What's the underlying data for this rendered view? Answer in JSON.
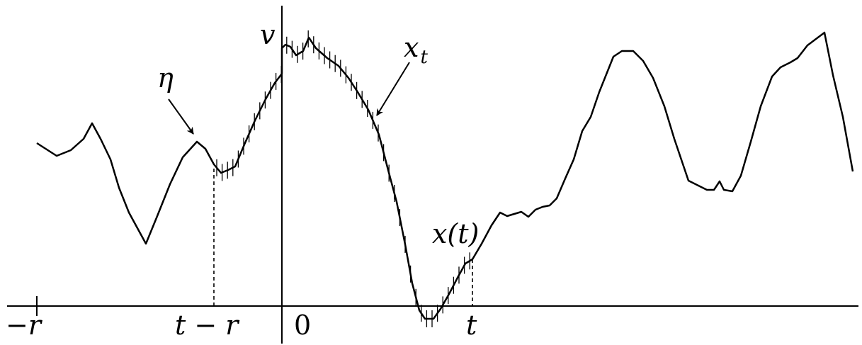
{
  "labels": {
    "eta": "η",
    "v": "v",
    "x_t_base": "x",
    "x_t_sub": "t",
    "x_of_t": "x(t)",
    "minus_r": "−r",
    "t_minus_r": "t − r",
    "zero": "0",
    "t": "t"
  }
}
